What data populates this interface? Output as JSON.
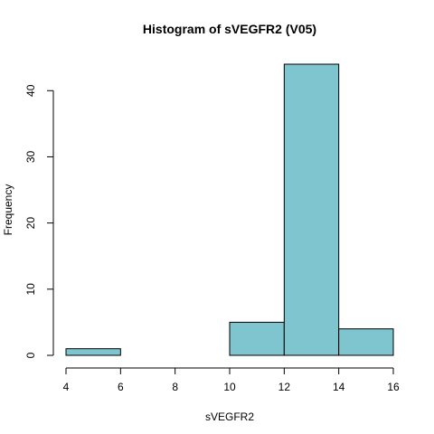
{
  "chart_data": {
    "type": "bar",
    "subtype": "histogram",
    "title": "Histogram of sVEGFR2 (V05)",
    "xlabel": "sVEGFR2",
    "ylabel": "Frequency",
    "bins": [
      {
        "start": 4,
        "end": 6,
        "count": 1
      },
      {
        "start": 6,
        "end": 8,
        "count": 0
      },
      {
        "start": 8,
        "end": 10,
        "count": 0
      },
      {
        "start": 10,
        "end": 12,
        "count": 5
      },
      {
        "start": 12,
        "end": 14,
        "count": 44
      },
      {
        "start": 14,
        "end": 16,
        "count": 4
      }
    ],
    "xlim": [
      4,
      16
    ],
    "ylim": [
      0,
      44
    ],
    "xticks": [
      4,
      6,
      8,
      10,
      12,
      14,
      16
    ],
    "yticks": [
      0,
      10,
      20,
      30,
      40
    ],
    "grid": false,
    "legend": "none",
    "colors": {
      "bar_fill": "#7ec5d0",
      "bar_edge": "#000000"
    }
  }
}
